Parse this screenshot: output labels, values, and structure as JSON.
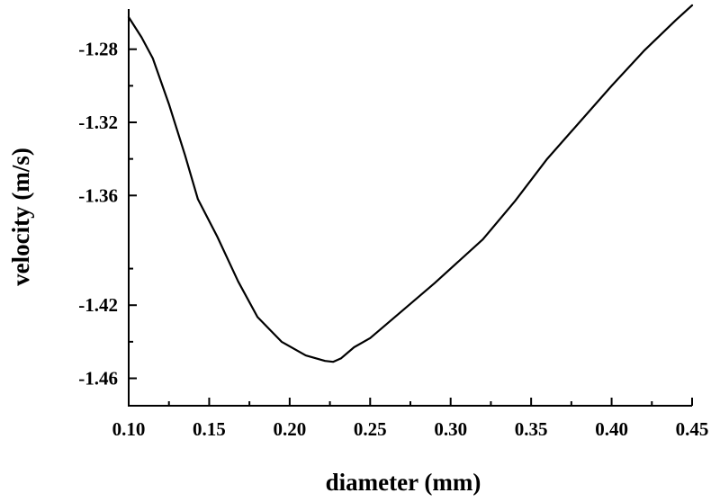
{
  "chart_data": {
    "type": "line",
    "title": "",
    "xlabel": "diameter (mm)",
    "ylabel": "velocity (m/s)",
    "xlim": [
      0.1,
      0.45
    ],
    "ylim": [
      -1.475,
      -1.258
    ],
    "xticks": [
      0.1,
      0.15,
      0.2,
      0.25,
      0.3,
      0.35,
      0.4,
      0.45
    ],
    "xtick_labels": [
      "0.10",
      "0.15",
      "0.20",
      "0.25",
      "0.30",
      "0.35",
      "0.40",
      "0.45"
    ],
    "yticks": [
      -1.28,
      -1.32,
      -1.36,
      -1.42,
      -1.46
    ],
    "ytick_labels": [
      "-1.28",
      "-1.32",
      "-1.36",
      "-1.42",
      "-1.46"
    ],
    "grid": false,
    "legend": "none",
    "line_color": "#000000",
    "series": [
      {
        "x": [
          0.1,
          0.108,
          0.115,
          0.125,
          0.135,
          0.143,
          0.155,
          0.168,
          0.18,
          0.195,
          0.21,
          0.222,
          0.227,
          0.232,
          0.24,
          0.25,
          0.27,
          0.29,
          0.32,
          0.34,
          0.36,
          0.38,
          0.4,
          0.42,
          0.44,
          0.45
        ],
        "y": [
          -1.2625,
          -1.2735,
          -1.285,
          -1.31,
          -1.338,
          -1.362,
          -1.3825,
          -1.407,
          -1.4265,
          -1.44,
          -1.4475,
          -1.4505,
          -1.451,
          -1.449,
          -1.443,
          -1.438,
          -1.423,
          -1.408,
          -1.384,
          -1.363,
          -1.34,
          -1.32,
          -1.3,
          -1.281,
          -1.264,
          -1.256
        ]
      }
    ]
  }
}
